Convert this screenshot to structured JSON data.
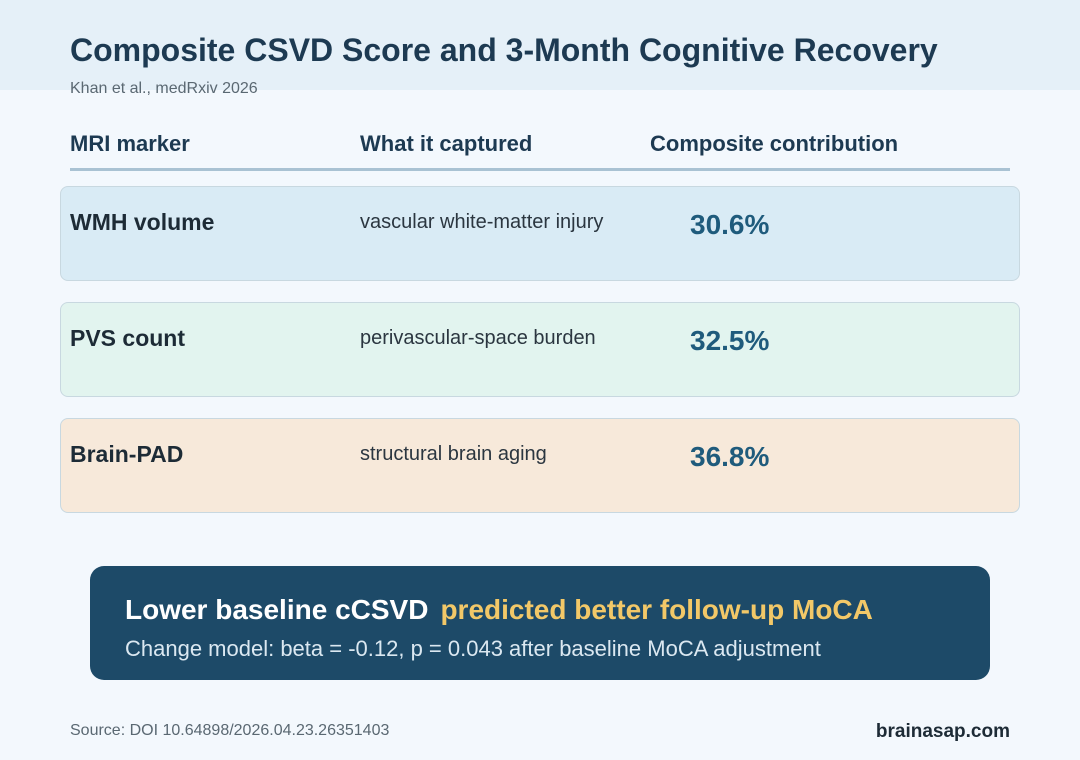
{
  "header": {
    "title": "Composite CSVD Score and 3-Month Cognitive Recovery",
    "subtitle": "Khan et al., medRxiv 2026"
  },
  "table": {
    "columns": [
      "MRI marker",
      "What it captured",
      "Composite contribution"
    ],
    "rows": [
      [
        "WMH volume",
        "vascular white-matter injury",
        "30.6%"
      ],
      [
        "PVS count",
        "perivascular-space burden",
        "32.5%"
      ],
      [
        "Brain-PAD",
        "structural brain aging",
        "36.8%"
      ]
    ]
  },
  "callout": {
    "lead": "Lower baseline cCSVD",
    "highlight": "predicted better follow-up MoCA",
    "detail": "Change model: beta = -0.12, p = 0.043 after baseline MoCA adjustment"
  },
  "footer": {
    "source": "Source: DOI 10.64898/2026.04.23.26351403",
    "brand": "brainasap.com"
  }
}
